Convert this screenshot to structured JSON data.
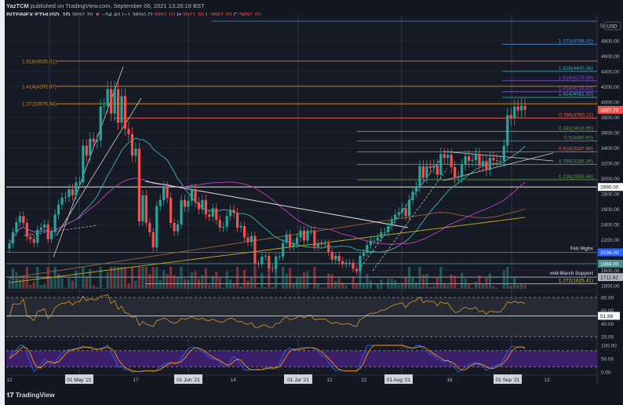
{
  "header": {
    "publisher": "YazTCM",
    "published_line": "published on TradingView.com, September 06, 2021 13:26:18 BST",
    "symbol": "BITFINEX:ETHUSD, 1D",
    "last": "3897.70",
    "change": "−54.40 (−1.38%)",
    "o_label": "O:",
    "o": "3952.10",
    "h_label": "H:",
    "h": "3971.30",
    "l_label": "L:",
    "l": "3887.20",
    "c_label": "C:",
    "c": "3897.70"
  },
  "branding": "TradingView",
  "colors": {
    "up": "#26a69a",
    "down": "#ef5350",
    "background": "#131722",
    "rsi_band": "#2a2e39",
    "stoch_band": "#3b1f6b"
  },
  "chart_data": [
    {
      "type": "candlestick",
      "title": "BITFINEX:ETHUSD, 1D",
      "x_start": "2021-04-12",
      "x_end": "2021-09-06",
      "x_tick_labels": [
        "12",
        "01 May '21",
        "17",
        "01 Jun '21",
        "14",
        "01 Jul '21",
        "12",
        "22",
        "01 Aug '21",
        "16",
        "01 Sep '21",
        "13"
      ],
      "y_unit": "USD",
      "ylim": [
        1540,
        5050
      ],
      "y_tick_labels": [
        "4800.00",
        "4600.00",
        "4400.00",
        "4200.00",
        "4000.00",
        "3800.00",
        "3600.00",
        "3400.00",
        "3200.00",
        "3000.00",
        "2800.00",
        "2600.00",
        "2400.00",
        "2200.00",
        "1800.00",
        "1600.00"
      ],
      "y_ticks": [
        4800,
        4600,
        4400,
        4200,
        4000,
        3800,
        3600,
        3400,
        3200,
        3000,
        2800,
        2600,
        2400,
        2200,
        1800,
        1600
      ],
      "closes": [
        2150,
        2300,
        2430,
        2510,
        2420,
        2240,
        2210,
        2160,
        2330,
        2360,
        2400,
        2210,
        2300,
        2530,
        2660,
        2750,
        2760,
        2860,
        2780,
        2950,
        2950,
        3430,
        3300,
        3520,
        3480,
        3500,
        3940,
        3950,
        4170,
        3850,
        4170,
        3730,
        4080,
        3650,
        3580,
        3300,
        3390,
        2440,
        2780,
        2420,
        2300,
        2100,
        2640,
        2720,
        2890,
        2750,
        2420,
        2310,
        2400,
        2720,
        2630,
        2710,
        2860,
        2690,
        2600,
        2720,
        2530,
        2500,
        2610,
        2460,
        2360,
        2370,
        2510,
        2590,
        2550,
        2360,
        2380,
        2230,
        2170,
        2250,
        1890,
        1880,
        1980,
        1990,
        1830,
        1820,
        1980,
        1980,
        2160,
        2270,
        2110,
        2150,
        2230,
        2320,
        2190,
        2320,
        2320,
        2110,
        2150,
        2140,
        2150,
        2040,
        1940,
        1990,
        1920,
        1880,
        1900,
        1900,
        1820,
        1790,
        1990,
        2030,
        2130,
        2190,
        2190,
        2230,
        2300,
        2300,
        2380,
        2460,
        2530,
        2560,
        2610,
        2510,
        2720,
        2830,
        2890,
        3160,
        3010,
        3160,
        3140,
        3170,
        3050,
        3320,
        3270,
        3310,
        3150,
        3010,
        3020,
        3180,
        3290,
        3230,
        3240,
        3320,
        3170,
        3230,
        3110,
        3270,
        3240,
        3230,
        3230,
        3430,
        3830,
        3790,
        3940,
        3890,
        3950,
        3897.7
      ],
      "fib_levels_left": [
        {
          "label": "1.618(4535.01)",
          "price": 4535.01,
          "color": "#c98a2b"
        },
        {
          "label": "1.414(4205.97)",
          "price": 4205.97,
          "color": "#c98a2b"
        },
        {
          "label": "1.272(3976.94)",
          "price": 3976.94,
          "color": "#c98a2b"
        }
      ],
      "fib_levels_right": [
        {
          "label": "1.272(4756.02)",
          "price": 4756.02,
          "color": "#4a8fd8"
        },
        {
          "label": "1.618(4400.36)",
          "price": 4400.36,
          "color": "#3fa3b0"
        },
        {
          "label": "1.618(4278.58)",
          "price": 4278.58,
          "color": "#7b4fd8"
        },
        {
          "label": "1.414(4135.63)",
          "price": 4135.63,
          "color": "#7b4fd8"
        },
        {
          "label": "1.414(4061.00)",
          "price": 4061.0,
          "color": "#3fa3b0"
        },
        {
          "label": "0.786(3790.11)",
          "price": 3790.11,
          "color": "#e0605a"
        },
        {
          "label": "0.382(3616.55)",
          "price": 3616.55,
          "color": "#5a9a4a"
        },
        {
          "label": "0.5(3490.60)",
          "price": 3490.6,
          "color": "#5a9a4a"
        },
        {
          "label": "0.618(3347.68)",
          "price": 3347.68,
          "color": "#e0605a"
        },
        {
          "label": "0.786(3185.36)",
          "price": 3185.36,
          "color": "#5a9a4a"
        },
        {
          "label": "0.236(2985.56)",
          "price": 2985.56,
          "color": "#5a9a4a"
        },
        {
          "label": "1.272(1625.41)",
          "price": 1625.41,
          "color": "#e0c030"
        }
      ],
      "price_markers": [
        {
          "label": "3897.70",
          "price": 3897.7,
          "bg": "#ef5350",
          "fg": "#ffffff"
        },
        {
          "label": "2890.00",
          "price": 2890.0,
          "bg": "#ffffff",
          "fg": "#131722"
        },
        {
          "label": "2036.00",
          "price": 2036.0,
          "bg": "#2962ff",
          "fg": "#ffffff"
        },
        {
          "label": "1888.00",
          "price": 1888.0,
          "bg": "#4a8f8f",
          "fg": "#ffffff"
        },
        {
          "label": "1711.82",
          "price": 1711.82,
          "bg": "#b2b5be",
          "fg": "#131722"
        }
      ],
      "annotations": [
        {
          "text": "Feb Highs",
          "price": 2036.0
        },
        {
          "text": "mid-March Support",
          "price": 1711.82
        }
      ],
      "axis_currency": "USD",
      "axis_top_label": "5|"
    },
    {
      "type": "line",
      "title": "",
      "ylim": [
        15,
        90
      ],
      "y_tick_labels": [
        "80.00",
        "60.00",
        "40.00",
        "20.00"
      ],
      "y_ticks": [
        80,
        60,
        40,
        20
      ],
      "bands": [
        20,
        80
      ],
      "last_value": "51.88"
    },
    {
      "type": "line",
      "title": "",
      "ylim": [
        0,
        100
      ],
      "y_tick_labels": [
        "100.00",
        "50.00",
        "0.00"
      ],
      "y_ticks": [
        100,
        50,
        0
      ],
      "bands": [
        20,
        80
      ]
    }
  ]
}
